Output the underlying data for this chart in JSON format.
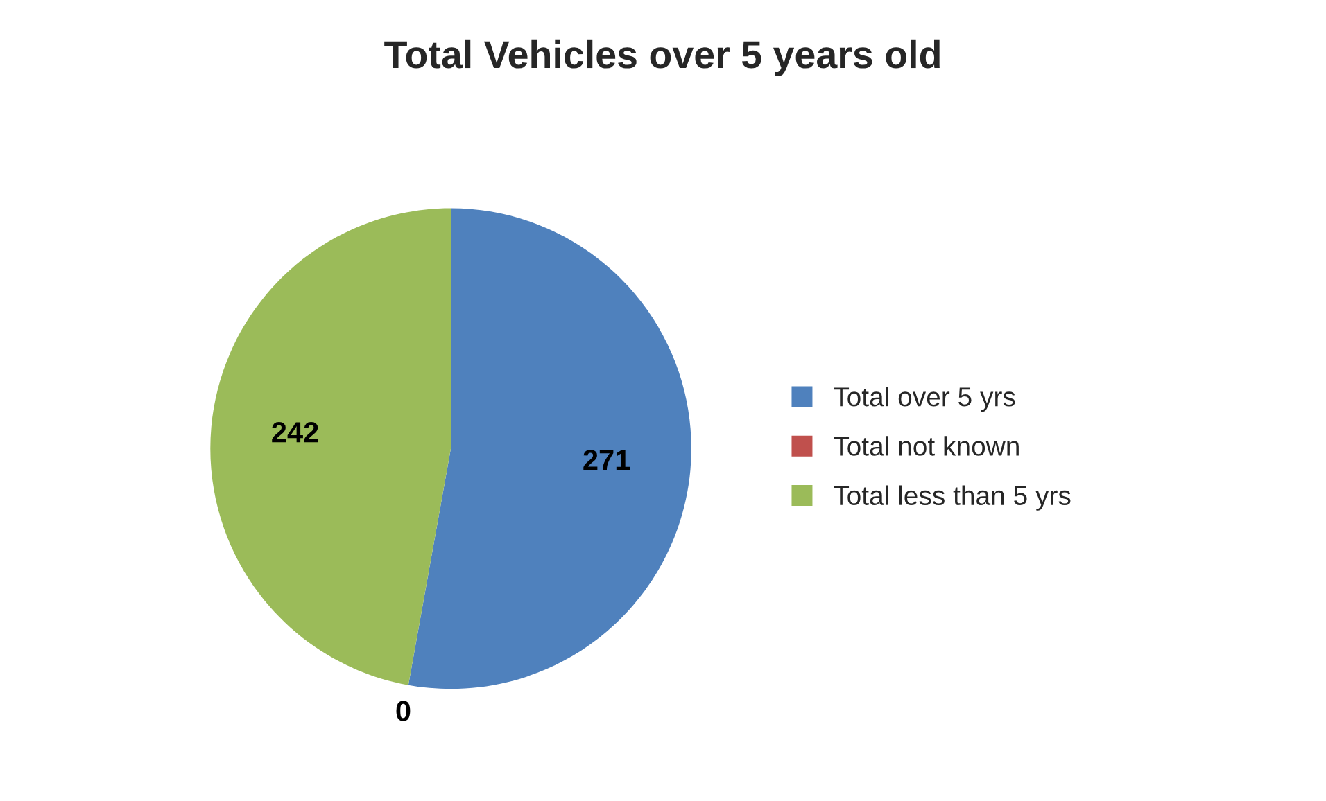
{
  "chart_data": {
    "type": "pie",
    "title": "Total Vehicles over 5 years old",
    "categories": [
      "Total over 5 yrs",
      "Total not known",
      "Total less than 5 yrs"
    ],
    "values": [
      271,
      0,
      242
    ],
    "colors": [
      "#4f81bd",
      "#c0504d",
      "#9bbb59"
    ],
    "value_labels": [
      "271",
      "0",
      "242"
    ],
    "legend": "right"
  }
}
